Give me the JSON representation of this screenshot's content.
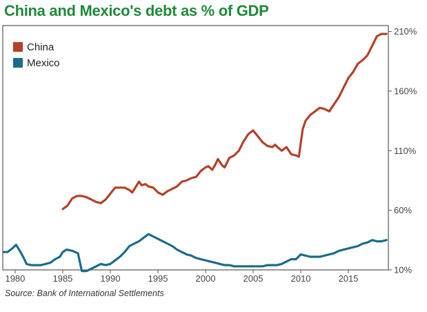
{
  "title": "China and Mexico's debt as % of GDP",
  "source": "Source: Bank of International Settlements",
  "chart_data": {
    "type": "line",
    "title": "China and Mexico's debt as % of GDP",
    "xlabel": "",
    "ylabel": "",
    "xlim": [
      1978.7,
      2019.2
    ],
    "ylim": [
      10,
      215
    ],
    "x_ticks": [
      1980,
      1985,
      1990,
      1995,
      2000,
      2005,
      2010,
      2015
    ],
    "x_tick_labels": [
      "1980",
      "1985",
      "1990",
      "1995",
      "2000",
      "2005",
      "2010",
      "2015"
    ],
    "y_ticks": [
      10,
      60,
      110,
      160,
      210
    ],
    "y_tick_labels": [
      "10%",
      "60%",
      "110%",
      "160%",
      "210%"
    ],
    "y_axis_side": "right",
    "grid": false,
    "legend_position": "top-left",
    "series": [
      {
        "name": "China",
        "color": "#b5402a",
        "points": [
          [
            1985.0,
            61
          ],
          [
            1985.5,
            64
          ],
          [
            1986.0,
            70
          ],
          [
            1986.5,
            72
          ],
          [
            1987.0,
            72
          ],
          [
            1987.5,
            71
          ],
          [
            1988.0,
            69
          ],
          [
            1988.5,
            67
          ],
          [
            1989.0,
            66
          ],
          [
            1989.5,
            69
          ],
          [
            1990.0,
            74
          ],
          [
            1990.5,
            79
          ],
          [
            1991.0,
            79
          ],
          [
            1991.5,
            79
          ],
          [
            1992.0,
            77
          ],
          [
            1992.3,
            75
          ],
          [
            1992.7,
            80
          ],
          [
            1993.0,
            84
          ],
          [
            1993.3,
            81
          ],
          [
            1993.7,
            82
          ],
          [
            1994.0,
            80
          ],
          [
            1994.5,
            79
          ],
          [
            1995.0,
            75
          ],
          [
            1995.5,
            73
          ],
          [
            1996.0,
            76
          ],
          [
            1996.5,
            78
          ],
          [
            1997.0,
            80
          ],
          [
            1997.5,
            84
          ],
          [
            1998.0,
            85
          ],
          [
            1998.5,
            87
          ],
          [
            1999.0,
            88
          ],
          [
            1999.5,
            93
          ],
          [
            2000.0,
            96
          ],
          [
            2000.3,
            97
          ],
          [
            2000.7,
            94
          ],
          [
            2001.0,
            98
          ],
          [
            2001.3,
            103
          ],
          [
            2001.7,
            98
          ],
          [
            2002.0,
            96
          ],
          [
            2002.5,
            104
          ],
          [
            2003.0,
            106
          ],
          [
            2003.5,
            110
          ],
          [
            2004.0,
            118
          ],
          [
            2004.5,
            124
          ],
          [
            2005.0,
            127
          ],
          [
            2005.5,
            122
          ],
          [
            2006.0,
            117
          ],
          [
            2006.5,
            114
          ],
          [
            2007.0,
            113
          ],
          [
            2007.3,
            115
          ],
          [
            2007.7,
            112
          ],
          [
            2008.0,
            110
          ],
          [
            2008.5,
            113
          ],
          [
            2009.0,
            107
          ],
          [
            2009.5,
            106
          ],
          [
            2009.8,
            105
          ],
          [
            2010.2,
            128
          ],
          [
            2010.5,
            135
          ],
          [
            2011.0,
            140
          ],
          [
            2011.5,
            143
          ],
          [
            2012.0,
            146
          ],
          [
            2012.5,
            145
          ],
          [
            2013.0,
            143
          ],
          [
            2013.5,
            149
          ],
          [
            2014.0,
            155
          ],
          [
            2014.5,
            163
          ],
          [
            2015.0,
            171
          ],
          [
            2015.5,
            176
          ],
          [
            2016.0,
            183
          ],
          [
            2016.5,
            186
          ],
          [
            2017.0,
            190
          ],
          [
            2017.5,
            198
          ],
          [
            2018.0,
            206
          ],
          [
            2018.5,
            208
          ],
          [
            2019.0,
            208
          ]
        ]
      },
      {
        "name": "Mexico",
        "color": "#1a6b8c",
        "points": [
          [
            1978.8,
            25
          ],
          [
            1979.2,
            25
          ],
          [
            1979.7,
            28
          ],
          [
            1980.1,
            31
          ],
          [
            1980.5,
            26
          ],
          [
            1980.9,
            20
          ],
          [
            1981.2,
            15
          ],
          [
            1981.7,
            14
          ],
          [
            1982.2,
            14
          ],
          [
            1982.7,
            14
          ],
          [
            1983.2,
            15
          ],
          [
            1983.7,
            16
          ],
          [
            1984.2,
            19
          ],
          [
            1984.7,
            21
          ],
          [
            1985.0,
            25
          ],
          [
            1985.4,
            27
          ],
          [
            1986.0,
            26
          ],
          [
            1986.6,
            24
          ],
          [
            1987.0,
            9
          ],
          [
            1987.5,
            9
          ],
          [
            1988.0,
            11
          ],
          [
            1988.5,
            13
          ],
          [
            1989.0,
            15
          ],
          [
            1989.5,
            14
          ],
          [
            1990.0,
            15
          ],
          [
            1990.5,
            18
          ],
          [
            1991.0,
            21
          ],
          [
            1991.5,
            25
          ],
          [
            1992.0,
            30
          ],
          [
            1992.5,
            32
          ],
          [
            1993.0,
            34
          ],
          [
            1993.5,
            37
          ],
          [
            1994.0,
            40
          ],
          [
            1994.5,
            38
          ],
          [
            1995.0,
            36
          ],
          [
            1995.5,
            34
          ],
          [
            1996.0,
            32
          ],
          [
            1996.5,
            30
          ],
          [
            1997.0,
            27
          ],
          [
            1997.5,
            25
          ],
          [
            1998.0,
            23
          ],
          [
            1998.5,
            22
          ],
          [
            1999.0,
            20
          ],
          [
            1999.5,
            19
          ],
          [
            2000.0,
            18
          ],
          [
            2000.5,
            17
          ],
          [
            2001.0,
            16
          ],
          [
            2001.5,
            15
          ],
          [
            2002.0,
            14
          ],
          [
            2002.5,
            14
          ],
          [
            2003.0,
            13
          ],
          [
            2003.5,
            13
          ],
          [
            2004.0,
            13
          ],
          [
            2004.5,
            13
          ],
          [
            2005.0,
            13
          ],
          [
            2005.5,
            13
          ],
          [
            2006.0,
            13
          ],
          [
            2006.5,
            14
          ],
          [
            2007.0,
            14
          ],
          [
            2007.5,
            14
          ],
          [
            2008.0,
            15
          ],
          [
            2008.5,
            17
          ],
          [
            2009.0,
            19
          ],
          [
            2009.5,
            19
          ],
          [
            2010.0,
            23
          ],
          [
            2010.5,
            22
          ],
          [
            2011.0,
            21
          ],
          [
            2011.5,
            21
          ],
          [
            2012.0,
            21
          ],
          [
            2012.5,
            22
          ],
          [
            2013.0,
            23
          ],
          [
            2013.5,
            24
          ],
          [
            2014.0,
            26
          ],
          [
            2014.5,
            27
          ],
          [
            2015.0,
            28
          ],
          [
            2015.5,
            29
          ],
          [
            2016.0,
            30
          ],
          [
            2016.5,
            32
          ],
          [
            2017.0,
            33
          ],
          [
            2017.5,
            35
          ],
          [
            2018.0,
            34
          ],
          [
            2018.5,
            34
          ],
          [
            2019.0,
            35
          ]
        ]
      }
    ]
  }
}
